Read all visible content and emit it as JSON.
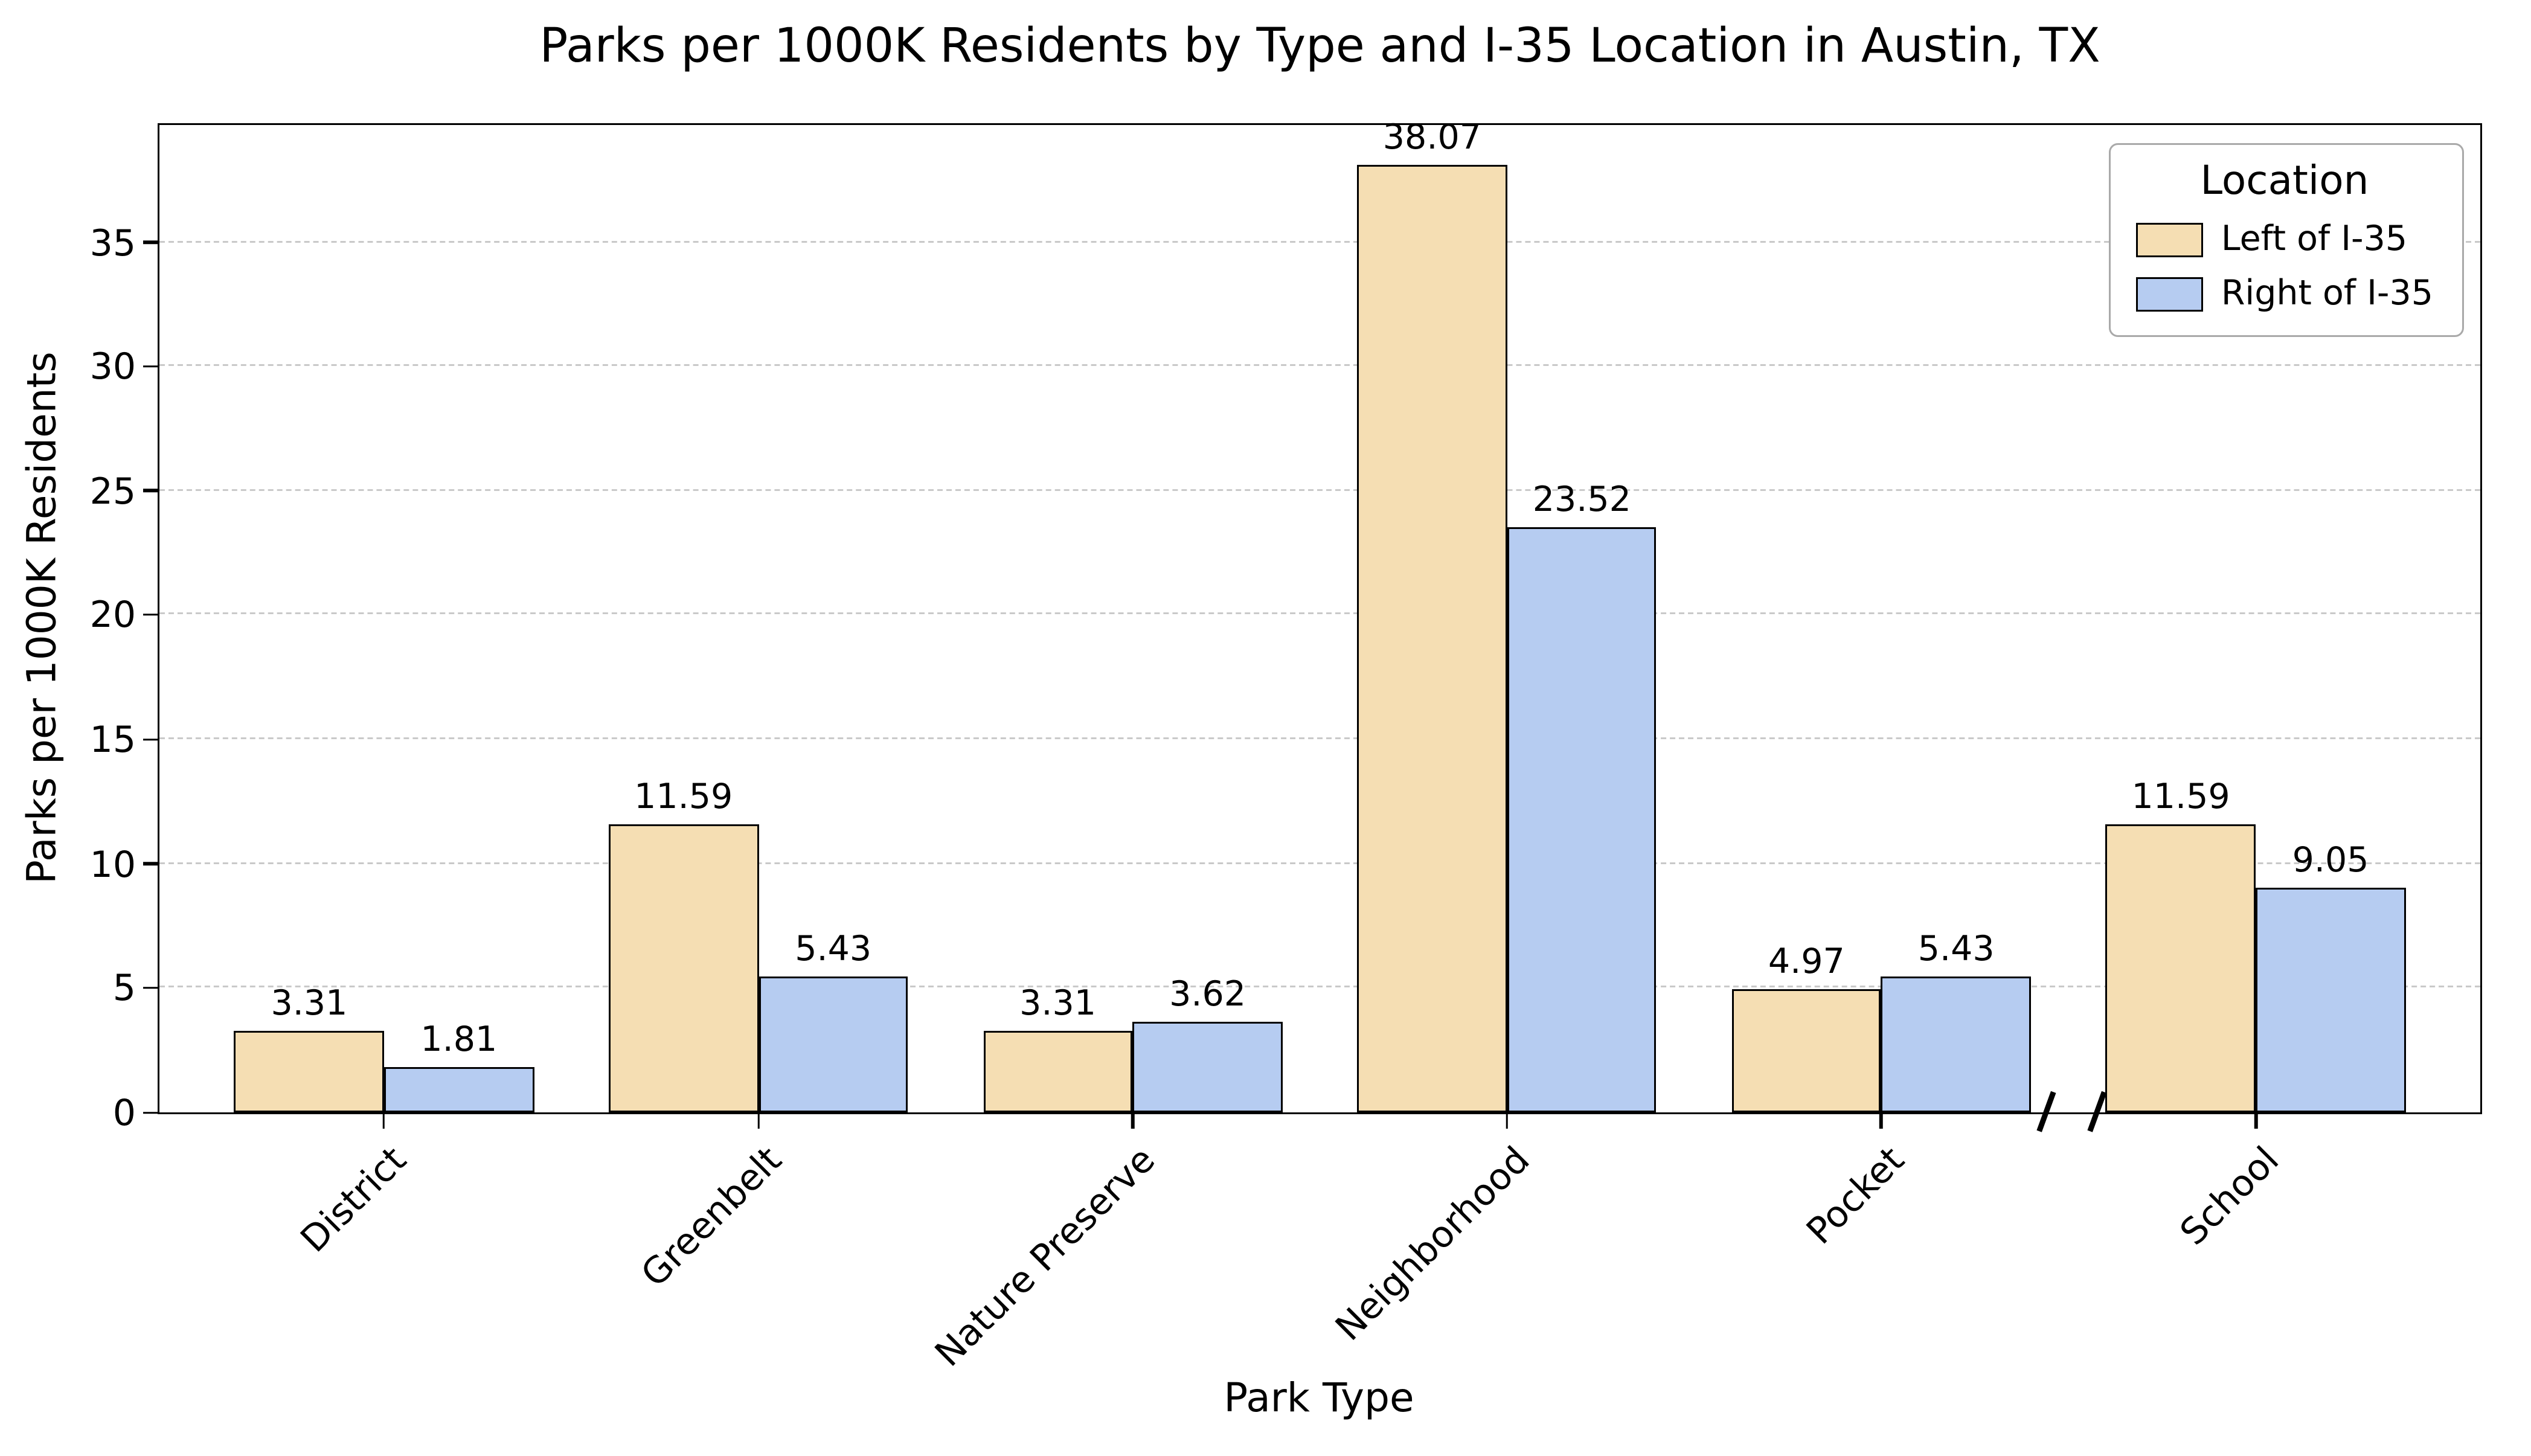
{
  "chart_data": {
    "type": "bar",
    "title": "Parks per 1000K Residents by Type and I-35 Location in Austin, TX",
    "xlabel": "Park Type",
    "ylabel": "Parks per 1000K Residents",
    "categories": [
      "District",
      "Greenbelt",
      "Nature Preserve",
      "Neighborhood",
      "Pocket",
      "School"
    ],
    "series": [
      {
        "name": "Left of I-35",
        "color": "#f5deb3",
        "values": [
          3.31,
          11.59,
          3.31,
          38.07,
          4.97,
          11.59
        ]
      },
      {
        "name": "Right of I-35",
        "color": "#b6ccf1",
        "values": [
          1.81,
          5.43,
          3.62,
          23.52,
          5.43,
          9.05
        ]
      }
    ],
    "legend": {
      "title": "Location",
      "position": "upper-right"
    },
    "yticks": [
      0,
      5,
      10,
      15,
      20,
      25,
      30,
      35
    ],
    "ylim": [
      0,
      39.7
    ],
    "grid": "horizontal-dashed",
    "bar_edge_color": "#000000",
    "axis_break": {
      "axis": "x",
      "between": [
        "Pocket",
        "School"
      ],
      "positions": [
        0.812,
        0.834
      ]
    }
  }
}
